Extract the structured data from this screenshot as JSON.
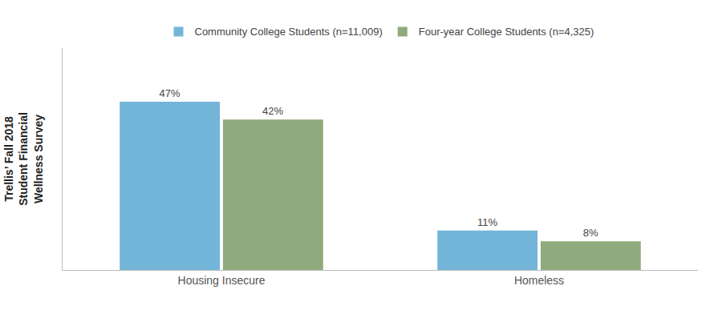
{
  "chart_data": {
    "type": "bar",
    "ylabel": "Trellis’ Fall 2018\nStudent Financial\nWellness Survey",
    "categories": [
      "Housing Insecure",
      "Homeless"
    ],
    "series": [
      {
        "name": "Community College Students (n=11,009)",
        "color": "#72b5d8",
        "values": [
          47,
          11
        ],
        "value_labels": [
          "47%",
          "11%"
        ]
      },
      {
        "name": "Four-year College Students (n=4,325)",
        "color": "#8faa7c",
        "values": [
          42,
          8
        ],
        "value_labels": [
          "42%",
          "8%"
        ]
      }
    ],
    "ylim": [
      0,
      62
    ],
    "data_labels": true,
    "tick_labels": "x",
    "grid": false,
    "legend": "top"
  }
}
